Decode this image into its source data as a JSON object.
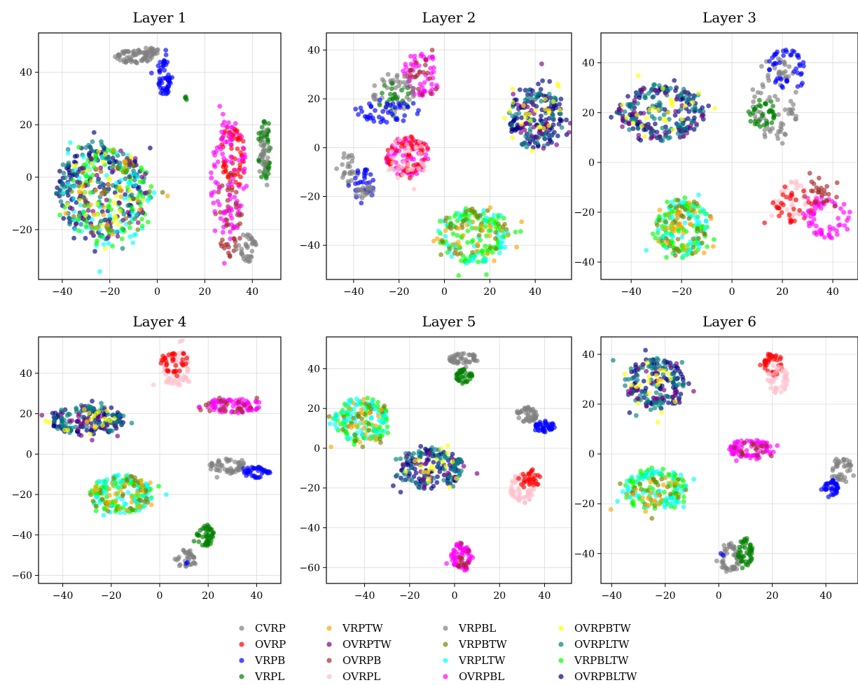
{
  "chart_data": [
    {
      "type": "scatter",
      "title": "Layer 1",
      "xlim": [
        -50,
        52
      ],
      "ylim": [
        -39,
        55
      ],
      "xticks": [
        -40,
        -20,
        0,
        20,
        40
      ],
      "yticks": [
        -20,
        0,
        20,
        40
      ],
      "grid": true,
      "clusters": [
        {
          "series": "VRPBL",
          "x": -10,
          "y": 46,
          "rx": 9,
          "ry": 3,
          "n": 60
        },
        {
          "series": "CVRP",
          "x": -3,
          "y": 48,
          "rx": 5,
          "ry": 2,
          "n": 25
        },
        {
          "series": "VRPB",
          "x": 3,
          "y": 38,
          "rx": 3,
          "ry": 8,
          "n": 55
        },
        {
          "series": "VRPL",
          "x": 12,
          "y": 30,
          "rx": 1,
          "ry": 1,
          "n": 4
        },
        {
          "series": "OVRPBLTW",
          "x": -24,
          "y": -5,
          "rx": 20,
          "ry": 20,
          "n": 140
        },
        {
          "series": "OVRPLTW",
          "x": -24,
          "y": -5,
          "rx": 20,
          "ry": 20,
          "n": 90
        },
        {
          "series": "VRPLTW",
          "x": -20,
          "y": -8,
          "rx": 20,
          "ry": 20,
          "n": 80
        },
        {
          "series": "VRPBLTW",
          "x": -20,
          "y": -8,
          "rx": 20,
          "ry": 20,
          "n": 80
        },
        {
          "series": "OVRPBTW",
          "x": -22,
          "y": -5,
          "rx": 18,
          "ry": 18,
          "n": 35
        },
        {
          "series": "VRPBTW",
          "x": -20,
          "y": -6,
          "rx": 18,
          "ry": 18,
          "n": 35
        },
        {
          "series": "OVRPTW",
          "x": -20,
          "y": -6,
          "rx": 18,
          "ry": 18,
          "n": 35
        },
        {
          "series": "VRPTW",
          "x": -20,
          "y": -6,
          "rx": 18,
          "ry": 18,
          "n": 25
        },
        {
          "series": "OVRP",
          "x": 32,
          "y": 8,
          "rx": 6,
          "ry": 14,
          "n": 60
        },
        {
          "series": "OVRPB",
          "x": 30,
          "y": -15,
          "rx": 6,
          "ry": 18,
          "n": 50
        },
        {
          "series": "OVRPBL",
          "x": 30,
          "y": 0,
          "rx": 8,
          "ry": 25,
          "n": 90
        },
        {
          "series": "VRPL",
          "x": 45,
          "y": 10,
          "rx": 3,
          "ry": 12,
          "n": 45
        },
        {
          "series": "VRPBL",
          "x": 38,
          "y": -27,
          "rx": 4,
          "ry": 6,
          "n": 35
        },
        {
          "series": "VRPBL",
          "x": 45,
          "y": 8,
          "rx": 2,
          "ry": 12,
          "n": 25
        }
      ]
    },
    {
      "type": "scatter",
      "title": "Layer 2",
      "xlim": [
        -52,
        56
      ],
      "ylim": [
        -54,
        47
      ],
      "xticks": [
        -40,
        -20,
        0,
        20,
        40
      ],
      "yticks": [
        -40,
        -20,
        0,
        20,
        40
      ],
      "grid": true,
      "clusters": [
        {
          "series": "OVRPBL",
          "x": -10,
          "y": 30,
          "rx": 9,
          "ry": 10,
          "n": 60
        },
        {
          "series": "OVRPB",
          "x": -10,
          "y": 30,
          "rx": 9,
          "ry": 10,
          "n": 20
        },
        {
          "series": "VRPBL",
          "x": -22,
          "y": 22,
          "rx": 10,
          "ry": 9,
          "n": 45
        },
        {
          "series": "VRPL",
          "x": -22,
          "y": 22,
          "rx": 10,
          "ry": 9,
          "n": 20
        },
        {
          "series": "VRPB",
          "x": -25,
          "y": 15,
          "rx": 16,
          "ry": 5,
          "n": 45
        },
        {
          "series": "VRPBL",
          "x": -42,
          "y": -8,
          "rx": 5,
          "ry": 8,
          "n": 25
        },
        {
          "series": "VRPB",
          "x": -35,
          "y": -15,
          "rx": 6,
          "ry": 8,
          "n": 30
        },
        {
          "series": "VRPBL",
          "x": -35,
          "y": -18,
          "rx": 5,
          "ry": 3,
          "n": 20
        },
        {
          "series": "OVRPBL",
          "x": -16,
          "y": -4,
          "rx": 10,
          "ry": 9,
          "n": 70
        },
        {
          "series": "OVRP",
          "x": -16,
          "y": -4,
          "rx": 10,
          "ry": 9,
          "n": 50
        },
        {
          "series": "OVRPL",
          "x": -16,
          "y": -4,
          "rx": 10,
          "ry": 9,
          "n": 35
        },
        {
          "series": "OVRPBLTW",
          "x": 40,
          "y": 12,
          "rx": 13,
          "ry": 13,
          "n": 120
        },
        {
          "series": "OVRPLTW",
          "x": 40,
          "y": 12,
          "rx": 13,
          "ry": 13,
          "n": 50
        },
        {
          "series": "OVRPTW",
          "x": 40,
          "y": 12,
          "rx": 13,
          "ry": 13,
          "n": 30
        },
        {
          "series": "OVRPBTW",
          "x": 40,
          "y": 12,
          "rx": 13,
          "ry": 13,
          "n": 25
        },
        {
          "series": "VRPBLTW",
          "x": 13,
          "y": -36,
          "rx": 17,
          "ry": 12,
          "n": 110
        },
        {
          "series": "VRPLTW",
          "x": 13,
          "y": -36,
          "rx": 17,
          "ry": 12,
          "n": 50
        },
        {
          "series": "VRPBTW",
          "x": 13,
          "y": -36,
          "rx": 17,
          "ry": 12,
          "n": 40
        },
        {
          "series": "VRPTW",
          "x": 13,
          "y": -36,
          "rx": 17,
          "ry": 12,
          "n": 25
        }
      ]
    },
    {
      "type": "scatter",
      "title": "Layer 3",
      "xlim": [
        -52,
        50
      ],
      "ylim": [
        -47,
        52
      ],
      "xticks": [
        -40,
        -20,
        0,
        20,
        40
      ],
      "yticks": [
        -40,
        -20,
        0,
        20,
        40
      ],
      "grid": true,
      "clusters": [
        {
          "series": "OVRPBLTW",
          "x": -28,
          "y": 20,
          "rx": 18,
          "ry": 12,
          "n": 110
        },
        {
          "series": "OVRPLTW",
          "x": -28,
          "y": 20,
          "rx": 18,
          "ry": 12,
          "n": 90
        },
        {
          "series": "OVRPTW",
          "x": -28,
          "y": 20,
          "rx": 18,
          "ry": 12,
          "n": 35
        },
        {
          "series": "OVRPBTW",
          "x": -28,
          "y": 20,
          "rx": 18,
          "ry": 12,
          "n": 25
        },
        {
          "series": "VRPBL",
          "x": 17,
          "y": 25,
          "rx": 10,
          "ry": 18,
          "n": 80
        },
        {
          "series": "VRPB",
          "x": 22,
          "y": 38,
          "rx": 8,
          "ry": 9,
          "n": 45
        },
        {
          "series": "VRPL",
          "x": 12,
          "y": 20,
          "rx": 6,
          "ry": 6,
          "n": 35
        },
        {
          "series": "OVRPL",
          "x": 25,
          "y": -15,
          "rx": 10,
          "ry": 8,
          "n": 45
        },
        {
          "series": "OVRP",
          "x": 25,
          "y": -18,
          "rx": 10,
          "ry": 8,
          "n": 35
        },
        {
          "series": "OVRPBL",
          "x": 38,
          "y": -22,
          "rx": 10,
          "ry": 9,
          "n": 60
        },
        {
          "series": "OVRPB",
          "x": 36,
          "y": -12,
          "rx": 8,
          "ry": 8,
          "n": 25
        },
        {
          "series": "VRPBLTW",
          "x": -20,
          "y": -26,
          "rx": 11,
          "ry": 13,
          "n": 100
        },
        {
          "series": "VRPLTW",
          "x": -20,
          "y": -26,
          "rx": 11,
          "ry": 13,
          "n": 60
        },
        {
          "series": "VRPBTW",
          "x": -20,
          "y": -26,
          "rx": 11,
          "ry": 13,
          "n": 40
        },
        {
          "series": "VRPTW",
          "x": -20,
          "y": -26,
          "rx": 11,
          "ry": 13,
          "n": 30
        }
      ]
    },
    {
      "type": "scatter",
      "title": "Layer 4",
      "xlim": [
        -50,
        50
      ],
      "ylim": [
        -64,
        58
      ],
      "xticks": [
        -40,
        -20,
        0,
        20,
        40
      ],
      "yticks": [
        -60,
        -40,
        -20,
        0,
        20,
        40
      ],
      "grid": true,
      "clusters": [
        {
          "series": "OVRPL",
          "x": 7,
          "y": 42,
          "rx": 7,
          "ry": 10,
          "n": 60
        },
        {
          "series": "OVRP",
          "x": 6,
          "y": 46,
          "rx": 6,
          "ry": 6,
          "n": 35
        },
        {
          "series": "OVRPBL",
          "x": 30,
          "y": 24,
          "rx": 12,
          "ry": 4,
          "n": 80
        },
        {
          "series": "OVRPB",
          "x": 30,
          "y": 24,
          "rx": 12,
          "ry": 4,
          "n": 20
        },
        {
          "series": "OVRPBLTW",
          "x": -30,
          "y": 17,
          "rx": 16,
          "ry": 8,
          "n": 90
        },
        {
          "series": "OVRPLTW",
          "x": -30,
          "y": 17,
          "rx": 16,
          "ry": 8,
          "n": 70
        },
        {
          "series": "OVRPTW",
          "x": -30,
          "y": 17,
          "rx": 16,
          "ry": 8,
          "n": 25
        },
        {
          "series": "OVRPBTW",
          "x": -30,
          "y": 17,
          "rx": 16,
          "ry": 8,
          "n": 20
        },
        {
          "series": "VRPBL",
          "x": 28,
          "y": -6,
          "rx": 8,
          "ry": 4,
          "n": 55
        },
        {
          "series": "VRPB",
          "x": 40,
          "y": -9,
          "rx": 6,
          "ry": 3,
          "n": 40
        },
        {
          "series": "VRPBLTW",
          "x": -16,
          "y": -20,
          "rx": 14,
          "ry": 10,
          "n": 100
        },
        {
          "series": "VRPLTW",
          "x": -16,
          "y": -20,
          "rx": 14,
          "ry": 10,
          "n": 60
        },
        {
          "series": "VRPBTW",
          "x": -16,
          "y": -20,
          "rx": 14,
          "ry": 10,
          "n": 35
        },
        {
          "series": "VRPTW",
          "x": -16,
          "y": -20,
          "rx": 14,
          "ry": 10,
          "n": 25
        },
        {
          "series": "VRPL",
          "x": 19,
          "y": -40,
          "rx": 4,
          "ry": 6,
          "n": 45
        },
        {
          "series": "VRPBL",
          "x": 11,
          "y": -52,
          "rx": 5,
          "ry": 5,
          "n": 35
        },
        {
          "series": "VRPB",
          "x": 11,
          "y": -54,
          "rx": 1,
          "ry": 1,
          "n": 2
        }
      ]
    },
    {
      "type": "scatter",
      "title": "Layer 5",
      "xlim": [
        -57,
        52
      ],
      "ylim": [
        -68,
        56
      ],
      "xticks": [
        -40,
        -20,
        0,
        20,
        40
      ],
      "yticks": [
        -60,
        -40,
        -20,
        0,
        20,
        40
      ],
      "grid": true,
      "clusters": [
        {
          "series": "VRPBL",
          "x": 4,
          "y": 45,
          "rx": 7,
          "ry": 3,
          "n": 45
        },
        {
          "series": "VRPL",
          "x": 4,
          "y": 36,
          "rx": 4,
          "ry": 4,
          "n": 40
        },
        {
          "series": "VRPBLTW",
          "x": -41,
          "y": 14,
          "rx": 13,
          "ry": 12,
          "n": 90
        },
        {
          "series": "VRPLTW",
          "x": -41,
          "y": 14,
          "rx": 13,
          "ry": 12,
          "n": 60
        },
        {
          "series": "VRPBTW",
          "x": -41,
          "y": 14,
          "rx": 13,
          "ry": 12,
          "n": 25
        },
        {
          "series": "VRPTW",
          "x": -41,
          "y": 14,
          "rx": 13,
          "ry": 12,
          "n": 20
        },
        {
          "series": "VRPBL",
          "x": 32,
          "y": 17,
          "rx": 5,
          "ry": 4,
          "n": 45
        },
        {
          "series": "VRPB",
          "x": 40,
          "y": 11,
          "rx": 5,
          "ry": 3,
          "n": 40
        },
        {
          "series": "OVRPBLTW",
          "x": -11,
          "y": -10,
          "rx": 16,
          "ry": 11,
          "n": 90
        },
        {
          "series": "OVRPLTW",
          "x": -11,
          "y": -10,
          "rx": 16,
          "ry": 11,
          "n": 70
        },
        {
          "series": "OVRPTW",
          "x": -11,
          "y": -10,
          "rx": 16,
          "ry": 11,
          "n": 20
        },
        {
          "series": "OVRPBTW",
          "x": -11,
          "y": -10,
          "rx": 16,
          "ry": 11,
          "n": 20
        },
        {
          "series": "OVRPL",
          "x": 30,
          "y": -20,
          "rx": 6,
          "ry": 8,
          "n": 60
        },
        {
          "series": "OVRP",
          "x": 34,
          "y": -15,
          "rx": 5,
          "ry": 5,
          "n": 30
        },
        {
          "series": "OVRPBL",
          "x": 3,
          "y": -55,
          "rx": 5,
          "ry": 8,
          "n": 75
        },
        {
          "series": "OVRPB",
          "x": 3,
          "y": -55,
          "rx": 5,
          "ry": 8,
          "n": 12
        }
      ]
    },
    {
      "type": "scatter",
      "title": "Layer 6",
      "xlim": [
        -44,
        52
      ],
      "ylim": [
        -52,
        47
      ],
      "xticks": [
        -40,
        -20,
        0,
        20,
        40
      ],
      "yticks": [
        -40,
        -20,
        0,
        20,
        40
      ],
      "grid": true,
      "clusters": [
        {
          "series": "OVRPBLTW",
          "x": -24,
          "y": 28,
          "rx": 12,
          "ry": 11,
          "n": 90
        },
        {
          "series": "OVRPLTW",
          "x": -24,
          "y": 28,
          "rx": 12,
          "ry": 11,
          "n": 70
        },
        {
          "series": "OVRPTW",
          "x": -24,
          "y": 28,
          "rx": 12,
          "ry": 11,
          "n": 25
        },
        {
          "series": "OVRPBTW",
          "x": -24,
          "y": 28,
          "rx": 12,
          "ry": 11,
          "n": 20
        },
        {
          "series": "OVRP",
          "x": 20,
          "y": 36,
          "rx": 4,
          "ry": 5,
          "n": 40
        },
        {
          "series": "OVRPL",
          "x": 22,
          "y": 30,
          "rx": 4,
          "ry": 6,
          "n": 40
        },
        {
          "series": "OVRPBL",
          "x": 12,
          "y": 2,
          "rx": 9,
          "ry": 4,
          "n": 80
        },
        {
          "series": "OVRPB",
          "x": 12,
          "y": 2,
          "rx": 9,
          "ry": 4,
          "n": 15
        },
        {
          "series": "VRPBLTW",
          "x": -24,
          "y": -14,
          "rx": 13,
          "ry": 9,
          "n": 90
        },
        {
          "series": "VRPLTW",
          "x": -24,
          "y": -14,
          "rx": 13,
          "ry": 9,
          "n": 60
        },
        {
          "series": "VRPBTW",
          "x": -24,
          "y": -14,
          "rx": 13,
          "ry": 9,
          "n": 25
        },
        {
          "series": "VRPTW",
          "x": -24,
          "y": -14,
          "rx": 13,
          "ry": 9,
          "n": 20
        },
        {
          "series": "VRPBL",
          "x": 46,
          "y": -6,
          "rx": 4,
          "ry": 5,
          "n": 40
        },
        {
          "series": "VRPB",
          "x": 42,
          "y": -14,
          "rx": 3,
          "ry": 4,
          "n": 40
        },
        {
          "series": "VRPBL",
          "x": 4,
          "y": -42,
          "rx": 4,
          "ry": 7,
          "n": 50
        },
        {
          "series": "VRPL",
          "x": 10,
          "y": -40,
          "rx": 3,
          "ry": 7,
          "n": 45
        },
        {
          "series": "VRPB",
          "x": 1,
          "y": -40,
          "rx": 1,
          "ry": 1,
          "n": 2
        }
      ]
    }
  ],
  "legend": {
    "placement": "bottom-center",
    "columns": 4,
    "entries": [
      {
        "label": "CVRP",
        "color": "#808080"
      },
      {
        "label": "OVRP",
        "color": "#ff0000"
      },
      {
        "label": "VRPB",
        "color": "#0000ff"
      },
      {
        "label": "VRPL",
        "color": "#008000"
      },
      {
        "label": "VRPTW",
        "color": "#ffa500"
      },
      {
        "label": "OVRPTW",
        "color": "#800080"
      },
      {
        "label": "OVRPB",
        "color": "#a52a2a"
      },
      {
        "label": "OVRPL",
        "color": "#ffc0cb"
      },
      {
        "label": "VRPBL",
        "color": "#808080"
      },
      {
        "label": "VRPBTW",
        "color": "#808000"
      },
      {
        "label": "VRPLTW",
        "color": "#00ffff"
      },
      {
        "label": "OVRPBL",
        "color": "#ff00ff"
      },
      {
        "label": "OVRPBTW",
        "color": "#ffff00"
      },
      {
        "label": "OVRPLTW",
        "color": "#008080"
      },
      {
        "label": "VRPBLTW",
        "color": "#00ff00"
      },
      {
        "label": "OVRPBLTW",
        "color": "#000080"
      }
    ]
  }
}
